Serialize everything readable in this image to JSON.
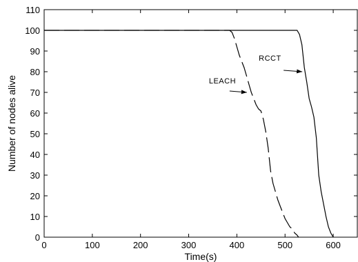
{
  "chart_data": {
    "type": "line",
    "xlabel": "Time(s)",
    "ylabel": "Number of nodes alive",
    "xlim": [
      0,
      650
    ],
    "ylim": [
      0,
      110
    ],
    "xticks": [
      0,
      100,
      200,
      300,
      400,
      500,
      600
    ],
    "yticks": [
      0,
      10,
      20,
      30,
      40,
      50,
      60,
      70,
      80,
      90,
      100,
      110
    ],
    "grid": false,
    "series": [
      {
        "name": "LEACH",
        "style": "dashed",
        "x": [
          0,
          385,
          390,
          395,
          400,
          405,
          410,
          415,
          420,
          425,
          430,
          435,
          440,
          445,
          450,
          455,
          460,
          465,
          470,
          475,
          480,
          485,
          490,
          495,
          500,
          505,
          510,
          515,
          520,
          525,
          528
        ],
        "y": [
          100,
          100,
          99,
          96,
          92,
          88,
          85,
          82,
          78,
          74,
          70,
          67,
          64,
          62,
          61,
          57,
          51,
          43,
          32,
          26,
          22,
          18,
          15,
          12,
          9,
          7,
          5,
          4,
          2,
          1,
          0
        ]
      },
      {
        "name": "RCCT",
        "style": "solid",
        "x": [
          0,
          525,
          530,
          535,
          540,
          545,
          550,
          555,
          560,
          565,
          570,
          575,
          580,
          585,
          590,
          595,
          600
        ],
        "y": [
          100,
          100,
          98,
          93,
          82,
          75,
          67,
          63,
          58,
          48,
          30,
          22,
          16,
          10,
          5,
          2,
          0
        ]
      }
    ],
    "annotations": [
      {
        "text": "LEACH",
        "arrow_to": [
          425,
          70
        ]
      },
      {
        "text": "RCCT",
        "arrow_to": [
          540,
          80
        ]
      }
    ]
  }
}
